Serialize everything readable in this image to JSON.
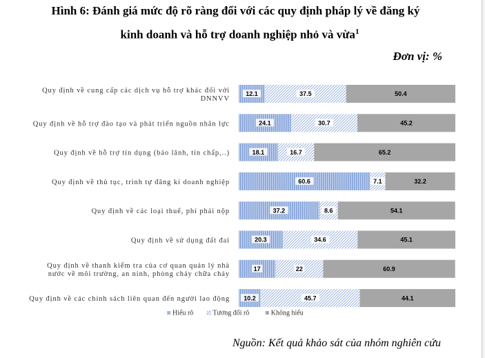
{
  "title_line1": "Hình 6: Đánh giá mức độ rõ ràng đối với các quy định pháp lý về đăng ký",
  "title_line2": "kinh doanh và hỗ trợ doanh nghiệp nhỏ và vừa",
  "title_footnote": "1",
  "unit": "Đơn vị: %",
  "source": "Nguồn: Kết quả khảo sát của nhóm nghiên cứu",
  "chart_data": {
    "type": "bar",
    "orientation": "horizontal",
    "stacked": "100%",
    "categories": [
      [
        "Quy định về cung cấp các dịch vụ hỗ trợ khác đối với",
        "DNNVV"
      ],
      [
        "Quy định về hỗ trợ đào tạo và phát triển nguồn nhân lực"
      ],
      [
        "Quy định về hỗ trợ tín dụng (bảo lãnh, tín chấp,..)"
      ],
      [
        "Quy định về thủ tục, trình tự đăng kí doanh nghiệp"
      ],
      [
        "Quy định về các loại thuế, phí phải nộp"
      ],
      [
        "Quy định về sử dụng đất đai"
      ],
      [
        "Quy định về thanh kiểm tra của cơ quan quản lý nhà",
        "nước về môi trường, an ninh, phòng cháy chữa cháy"
      ],
      [
        "Quy định về các chính sách liên quan đến người lao động"
      ]
    ],
    "series": [
      {
        "name": "Hiểu rõ",
        "color": "#8ea9db",
        "pattern": "vertical-stripes",
        "values": [
          12.1,
          24.1,
          18.1,
          60.6,
          37.2,
          20.3,
          17,
          10.2
        ],
        "labels": [
          "12.1",
          "24.1",
          "18.1",
          "60.6",
          "37.2",
          "20.3",
          "17",
          "10.2"
        ]
      },
      {
        "name": "Tương đối rõ",
        "color": "#ffffff",
        "pattern": "diagonal-hatch",
        "values": [
          37.5,
          30.7,
          16.7,
          7.1,
          8.6,
          34.6,
          22,
          45.7
        ],
        "labels": [
          "37.5",
          "30.7",
          "16.7",
          "7.1",
          "8.6",
          "34.6",
          "22",
          "45.7"
        ]
      },
      {
        "name": "Không hiểu",
        "color": "#a6a6a6",
        "pattern": "solid",
        "values": [
          50.4,
          45.2,
          65.2,
          32.2,
          54.1,
          45.1,
          60.9,
          44.1
        ],
        "labels": [
          "50.4",
          "45.2",
          "65.2",
          "32.2",
          "54.1",
          "45.1",
          "60.9",
          "44.1"
        ]
      }
    ],
    "xlim": [
      0,
      100
    ],
    "grid": false,
    "legend_position": "bottom"
  }
}
